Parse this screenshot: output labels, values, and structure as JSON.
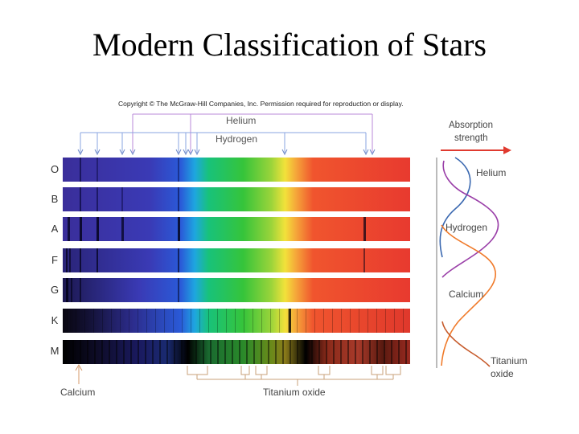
{
  "title": "Modern Classification of Stars",
  "copyright": "Copyright © The McGraw-Hill Companies, Inc. Permission required for reproduction or display.",
  "top_labels": {
    "helium": "Helium",
    "hydrogen": "Hydrogen"
  },
  "spectral_classes": [
    "O",
    "B",
    "A",
    "F",
    "G",
    "K",
    "M"
  ],
  "bottom_labels": {
    "calcium": "Calcium",
    "titanium_oxide": "Titanium oxide"
  },
  "absorption_panel": {
    "heading_line1": "Absorption",
    "heading_line2": "strength",
    "helium": "Helium",
    "hydrogen": "Hydrogen",
    "calcium": "Calcium",
    "titanium_oxide_line1": "Titanium",
    "titanium_oxide_line2": "oxide"
  },
  "colors": {
    "helium_line": "#b98ad8",
    "hydrogen_line": "#8aa6e0",
    "arrow": "#e03a2f",
    "helium_curve": "#3a68b0",
    "hydrogen_curve": "#9a3fa8",
    "calcium_curve": "#f07a2a",
    "tio_curve": "#c65a2a",
    "bracket": "#c8a27a"
  }
}
